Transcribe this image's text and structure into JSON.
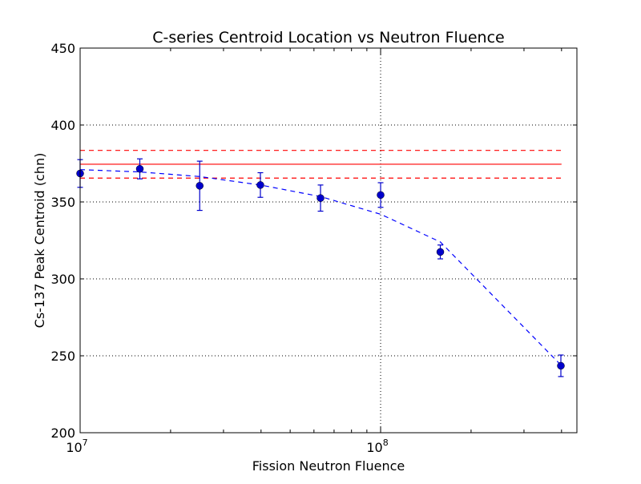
{
  "chart_data": {
    "type": "scatter",
    "title": "C-series Centroid Location vs Neutron Fluence",
    "xlabel": "Fission Neutron Fluence",
    "ylabel": "Cs-137 Peak Centroid (chn)",
    "xscale": "log",
    "xlim": [
      10000000,
      450000000
    ],
    "ylim": [
      200,
      450
    ],
    "x_ticks": [
      {
        "value": 10000000,
        "base": "10",
        "exp": "7"
      },
      {
        "value": 100000000,
        "base": "10",
        "exp": "8"
      }
    ],
    "y_ticks": [
      {
        "value": 200,
        "label": "200"
      },
      {
        "value": 250,
        "label": "250"
      },
      {
        "value": 300,
        "label": "300"
      },
      {
        "value": 350,
        "label": "350"
      },
      {
        "value": 400,
        "label": "400"
      },
      {
        "value": 450,
        "label": "450"
      }
    ],
    "grid": true,
    "points": {
      "color": "#0000cc",
      "data": [
        {
          "x": 10000000,
          "y": 368.5,
          "err": 9
        },
        {
          "x": 15800000,
          "y": 371.5,
          "err": 6.5
        },
        {
          "x": 25000000,
          "y": 360.5,
          "err": 16
        },
        {
          "x": 39800000,
          "y": 361,
          "err": 8
        },
        {
          "x": 63100000,
          "y": 352.5,
          "err": 8.5
        },
        {
          "x": 100000000,
          "y": 354.5,
          "err": 8
        },
        {
          "x": 158000000,
          "y": 317.5,
          "err": 4.5
        },
        {
          "x": 398000000,
          "y": 243.5,
          "err": 7
        }
      ]
    },
    "fit_line": {
      "color": "#0000ff",
      "style": "dashed",
      "data": [
        {
          "x": 10000000,
          "y": 371
        },
        {
          "x": 15800000,
          "y": 369.5
        },
        {
          "x": 25000000,
          "y": 366.5
        },
        {
          "x": 39800000,
          "y": 361
        },
        {
          "x": 63100000,
          "y": 353.5
        },
        {
          "x": 100000000,
          "y": 342
        },
        {
          "x": 158000000,
          "y": 324
        },
        {
          "x": 398000000,
          "y": 244
        }
      ]
    },
    "reference_lines": [
      {
        "y": 374.5,
        "style": "solid",
        "color": "#ff0000"
      },
      {
        "y": 383.5,
        "style": "dashed",
        "color": "#ff0000"
      },
      {
        "y": 365.5,
        "style": "dashed",
        "color": "#ff0000"
      }
    ],
    "reference_x_range": [
      10000000,
      400000000
    ]
  }
}
